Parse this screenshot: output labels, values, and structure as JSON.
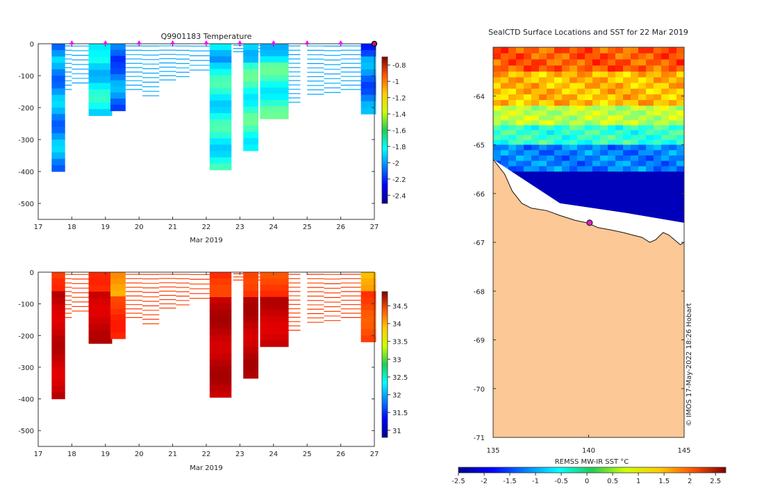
{
  "chart_data": [
    {
      "type": "heatmap",
      "title": "Q9901183  Temperature",
      "xlabel": "Mar 2019",
      "ylabel": "",
      "x_ticks": [
        "17",
        "18",
        "19",
        "20",
        "21",
        "22",
        "23",
        "24",
        "25",
        "26",
        "27"
      ],
      "xlim": [
        17,
        27
      ],
      "y_ticks": [
        "0",
        "-100",
        "-200",
        "-300",
        "-400",
        "-500"
      ],
      "ylim": [
        -550,
        0
      ],
      "colorbar_ticks": [
        "-0.8",
        "-1",
        "-1.2",
        "-1.4",
        "-1.6",
        "-1.8",
        "-2",
        "-2.2",
        "-2.4"
      ],
      "colorbar_range": [
        -2.5,
        -0.7
      ],
      "markers_days": [
        18,
        19,
        20,
        21,
        22,
        23,
        24,
        25,
        26
      ],
      "last_position_day": 27,
      "profiles": [
        {
          "t0": 17.4,
          "t1": 17.8,
          "max_depth": 400,
          "value": -2.0
        },
        {
          "t0": 18.5,
          "t1": 19.2,
          "max_depth": 225,
          "value": -1.85
        },
        {
          "t0": 19.15,
          "t1": 19.6,
          "max_depth": 210,
          "value": -2.05
        },
        {
          "t0": 22.1,
          "t1": 22.75,
          "max_depth": 395,
          "value": -1.8
        },
        {
          "t0": 23.1,
          "t1": 23.55,
          "max_depth": 335,
          "value": -1.75
        },
        {
          "t0": 23.6,
          "t1": 24.45,
          "max_depth": 235,
          "value": -1.75
        },
        {
          "t0": 26.6,
          "t1": 27.05,
          "max_depth": 220,
          "value": -2.05
        }
      ]
    },
    {
      "type": "heatmap",
      "title": "",
      "xlabel": "Mar 2019",
      "ylabel": "",
      "x_ticks": [
        "17",
        "18",
        "19",
        "20",
        "21",
        "22",
        "23",
        "24",
        "25",
        "26",
        "27"
      ],
      "xlim": [
        17,
        27
      ],
      "y_ticks": [
        "0",
        "-100",
        "-200",
        "-300",
        "-400",
        "-500"
      ],
      "ylim": [
        -550,
        0
      ],
      "colorbar_ticks": [
        "34.5",
        "34",
        "33.5",
        "33",
        "32.5",
        "32",
        "31.5",
        "31"
      ],
      "colorbar_range": [
        30.8,
        34.9
      ],
      "profiles": [
        {
          "t0": 17.4,
          "t1": 17.8,
          "max_depth": 400,
          "value": 34.6
        },
        {
          "t0": 18.5,
          "t1": 19.2,
          "max_depth": 225,
          "value": 34.6
        },
        {
          "t0": 19.15,
          "t1": 19.6,
          "max_depth": 210,
          "value": 34.2
        },
        {
          "t0": 22.1,
          "t1": 22.75,
          "max_depth": 395,
          "value": 34.65
        },
        {
          "t0": 23.1,
          "t1": 23.55,
          "max_depth": 335,
          "value": 34.65
        },
        {
          "t0": 23.6,
          "t1": 24.45,
          "max_depth": 235,
          "value": 34.6
        },
        {
          "t0": 26.6,
          "t1": 27.05,
          "max_depth": 220,
          "value": 34.1
        }
      ]
    },
    {
      "type": "heatmap",
      "title": "SealCTD Surface Locations and SST for 22 Mar 2019",
      "xlabel": "REMSS MW-IR SST °C",
      "ylabel": "",
      "x_ticks": [
        "135",
        "140",
        "145"
      ],
      "xlim": [
        135,
        145
      ],
      "y_ticks": [
        "-64",
        "-65",
        "-66",
        "-67",
        "-68",
        "-69",
        "-70",
        "-71"
      ],
      "ylim": [
        -71,
        -63
      ],
      "colorbar_ticks": [
        "-2.5",
        "-2",
        "-1.5",
        "-1",
        "-0.5",
        "0",
        "0.5",
        "1",
        "1.5",
        "2",
        "2.5"
      ],
      "colorbar_range": [
        -2.5,
        2.7
      ],
      "sst_bands": [
        {
          "lat_top": -63.0,
          "lat_bottom": -63.5,
          "value": 1.6
        },
        {
          "lat_top": -63.5,
          "lat_bottom": -64.2,
          "value": 1.1
        },
        {
          "lat_top": -64.2,
          "lat_bottom": -64.6,
          "value": 0.4
        },
        {
          "lat_top": -64.6,
          "lat_bottom": -65.0,
          "value": -0.3
        },
        {
          "lat_top": -65.0,
          "lat_bottom": -65.55,
          "value": -1.2
        },
        {
          "lat_top": -65.55,
          "lat_bottom": -67.0,
          "value": -2.2
        }
      ],
      "seal_location": {
        "lon": 140.05,
        "lat": -66.6
      },
      "credit": "© IMOS 17-May-2022 18:26 Hobart"
    }
  ]
}
